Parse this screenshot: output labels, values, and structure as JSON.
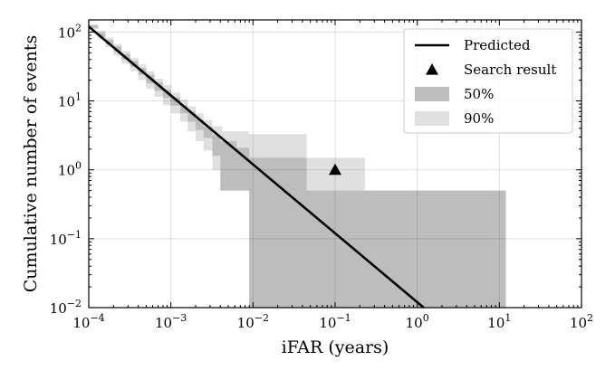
{
  "chart_data": {
    "type": "line",
    "title": "",
    "xlabel": "iFAR (years)",
    "ylabel": "Cumulative number of events",
    "xscale": "log",
    "yscale": "log",
    "xlim": [
      0.0001,
      100
    ],
    "ylim": [
      0.01,
      150
    ],
    "x_ticks": [
      {
        "value": 0.0001,
        "base": "10",
        "exp": "−4"
      },
      {
        "value": 0.001,
        "base": "10",
        "exp": "−3"
      },
      {
        "value": 0.01,
        "base": "10",
        "exp": "−2"
      },
      {
        "value": 0.1,
        "base": "10",
        "exp": "−1"
      },
      {
        "value": 1,
        "base": "10",
        "exp": "0"
      },
      {
        "value": 10,
        "base": "10",
        "exp": "1"
      },
      {
        "value": 100,
        "base": "10",
        "exp": "2"
      }
    ],
    "y_ticks": [
      {
        "value": 0.01,
        "base": "10",
        "exp": "−2"
      },
      {
        "value": 0.1,
        "base": "10",
        "exp": "−1"
      },
      {
        "value": 1,
        "base": "10",
        "exp": "0"
      },
      {
        "value": 10,
        "base": "10",
        "exp": "1"
      },
      {
        "value": 100,
        "base": "10",
        "exp": "2"
      }
    ],
    "grid": true,
    "legend_position": "top-right",
    "series": [
      {
        "name": "Predicted",
        "kind": "line",
        "color": "#000000",
        "x": [
          0.0001,
          1.2
        ],
        "y": [
          120,
          0.01
        ]
      },
      {
        "name": "Search result",
        "kind": "marker",
        "marker": "triangle",
        "color": "#000000",
        "x": [
          0.1
        ],
        "y": [
          1.0
        ]
      },
      {
        "name": "50%",
        "kind": "band",
        "color": "#bdbdbd",
        "x": [
          0.0001,
          0.00013,
          0.00016,
          0.0002,
          0.00025,
          0.00032,
          0.0004,
          0.0005,
          0.00063,
          0.0008,
          0.001,
          0.0013,
          0.0016,
          0.002,
          0.0025,
          0.0032,
          0.004,
          0.0063,
          0.009,
          0.012,
          0.045,
          0.23,
          12
        ],
        "lower": [
          115,
          85,
          66,
          52,
          40,
          31,
          24,
          18,
          14,
          11,
          8.5,
          6.6,
          5.0,
          3.8,
          2.9,
          1.6,
          0.5,
          0.5,
          0.01,
          0.01,
          0.01,
          0.01,
          0.01
        ],
        "upper": [
          125,
          97,
          77,
          62,
          48,
          38,
          30,
          24,
          18.5,
          14.5,
          11.2,
          8.7,
          7.0,
          5.4,
          4.2,
          3.2,
          2.6,
          2.1,
          1.5,
          1.5,
          0.5,
          0.5,
          0.5
        ]
      },
      {
        "name": "90%",
        "kind": "band",
        "color": "#e0e0e0",
        "x": [
          0.0001,
          0.00013,
          0.00016,
          0.0002,
          0.00025,
          0.00032,
          0.0004,
          0.0005,
          0.00063,
          0.0008,
          0.001,
          0.0013,
          0.0016,
          0.002,
          0.0025,
          0.0032,
          0.0042,
          0.009,
          0.045,
          0.23,
          12
        ],
        "lower": [
          110,
          79,
          60,
          46,
          35,
          27,
          20,
          15,
          11.5,
          8.7,
          6.6,
          5.0,
          3.6,
          2.6,
          1.9,
          1.0,
          0.5,
          0.01,
          0.01,
          0.01,
          0.01
        ],
        "upper": [
          130,
          104,
          83,
          67,
          53,
          42,
          34,
          27,
          21,
          17,
          13.2,
          10.5,
          8.3,
          6.6,
          5.3,
          4.3,
          3.6,
          3.3,
          1.5,
          0.5,
          0.5
        ]
      }
    ]
  }
}
